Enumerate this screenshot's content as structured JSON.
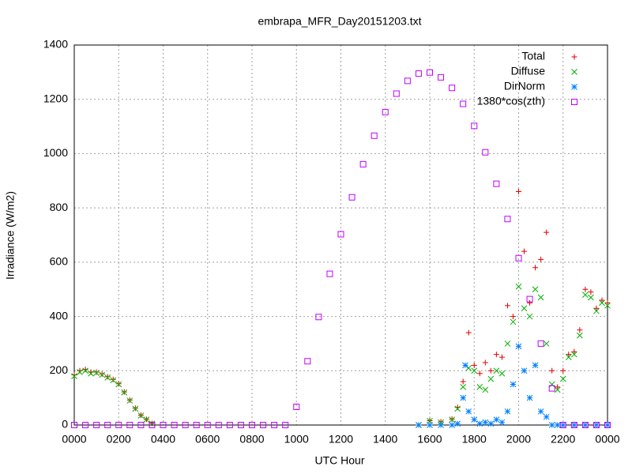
{
  "chart_data": {
    "type": "scatter",
    "title": "embrapa_MFR_Day20151203.txt",
    "x_label": "UTC Hour",
    "y_label": "Irradiance (W/m2)",
    "xlim": [
      0,
      24
    ],
    "ylim": [
      0,
      1400
    ],
    "xticks": [
      {
        "value": 0,
        "label": "0000"
      },
      {
        "value": 2,
        "label": "0200"
      },
      {
        "value": 4,
        "label": "0400"
      },
      {
        "value": 6,
        "label": "0600"
      },
      {
        "value": 8,
        "label": "0800"
      },
      {
        "value": 10,
        "label": "1000"
      },
      {
        "value": 12,
        "label": "1200"
      },
      {
        "value": 14,
        "label": "1400"
      },
      {
        "value": 16,
        "label": "1600"
      },
      {
        "value": 18,
        "label": "1800"
      },
      {
        "value": 20,
        "label": "2000"
      },
      {
        "value": 22,
        "label": "2200"
      },
      {
        "value": 24,
        "label": "0000"
      }
    ],
    "yticks": [
      0,
      200,
      400,
      600,
      800,
      1000,
      1200,
      1400
    ],
    "grid": true,
    "legend": "top-right",
    "series": [
      {
        "name": "Total",
        "color": "#e00000",
        "marker": "plus",
        "x": [
          0,
          0.25,
          0.5,
          0.75,
          1,
          1.25,
          1.5,
          1.75,
          2,
          2.25,
          2.5,
          2.75,
          3,
          3.25,
          3.5,
          15.5,
          16,
          16.5,
          17,
          17.25,
          17.5,
          17.75,
          18,
          18.25,
          18.5,
          18.75,
          19,
          19.25,
          19.5,
          19.75,
          20,
          20.25,
          20.5,
          20.75,
          21,
          21.25,
          21.5,
          21.75,
          22,
          22.25,
          22.5,
          22.75,
          23,
          23.25,
          23.5,
          23.75,
          24
        ],
        "values": [
          185,
          200,
          205,
          195,
          195,
          188,
          178,
          168,
          152,
          122,
          92,
          62,
          36,
          21,
          6,
          0,
          16,
          12,
          22,
          65,
          160,
          340,
          220,
          190,
          230,
          200,
          260,
          250,
          440,
          400,
          860,
          640,
          450,
          580,
          610,
          710,
          200,
          140,
          200,
          260,
          270,
          350,
          500,
          490,
          430,
          460,
          450
        ]
      },
      {
        "name": "Diffuse",
        "color": "#00b000",
        "marker": "cross",
        "x": [
          0,
          0.25,
          0.5,
          0.75,
          1,
          1.25,
          1.5,
          1.75,
          2,
          2.25,
          2.5,
          2.75,
          3,
          3.25,
          3.5,
          15.5,
          16,
          16.5,
          17,
          17.25,
          17.5,
          17.75,
          18,
          18.25,
          18.5,
          18.75,
          19,
          19.25,
          19.5,
          19.75,
          20,
          20.25,
          20.5,
          20.75,
          21,
          21.25,
          21.5,
          21.75,
          22,
          22.25,
          22.5,
          22.75,
          23,
          23.25,
          23.5,
          23.75,
          24
        ],
        "values": [
          180,
          195,
          200,
          190,
          192,
          185,
          175,
          165,
          150,
          120,
          90,
          60,
          35,
          20,
          5,
          0,
          15,
          10,
          20,
          60,
          140,
          210,
          200,
          140,
          130,
          170,
          200,
          190,
          300,
          380,
          510,
          430,
          400,
          500,
          470,
          300,
          150,
          130,
          170,
          250,
          260,
          330,
          480,
          470,
          420,
          450,
          440
        ]
      },
      {
        "name": "DirNorm",
        "color": "#0080ff",
        "marker": "star",
        "x": [
          15.5,
          16,
          16.5,
          17,
          17.25,
          17.5,
          17.6,
          17.75,
          18,
          18.25,
          18.5,
          18.75,
          19,
          19.25,
          19.5,
          19.75,
          20,
          20.25,
          20.5,
          20.75,
          21,
          21.25,
          21.5,
          21.75,
          22,
          22.5,
          23,
          23.5,
          24
        ],
        "values": [
          0,
          0,
          0,
          0,
          5,
          100,
          220,
          50,
          20,
          5,
          10,
          5,
          20,
          10,
          50,
          150,
          290,
          200,
          100,
          220,
          50,
          30,
          0,
          0,
          0,
          0,
          0,
          0,
          0
        ]
      },
      {
        "name": "1380*cos(zth)",
        "color": "#c000ff",
        "marker": "square",
        "x": [
          0,
          0.5,
          1,
          1.5,
          2,
          2.5,
          3,
          3.5,
          4,
          4.5,
          5,
          5.5,
          6,
          6.5,
          7,
          7.5,
          8,
          8.5,
          9,
          9.5,
          10,
          10.5,
          11,
          11.5,
          12,
          12.5,
          13,
          13.5,
          14,
          14.5,
          15,
          15.5,
          16,
          16.5,
          17,
          17.5,
          18,
          18.5,
          19,
          19.5,
          20,
          20.5,
          21,
          21.5,
          22,
          22.5,
          23,
          23.5,
          24
        ],
        "values": [
          0,
          0,
          0,
          0,
          0,
          0,
          0,
          0,
          0,
          0,
          0,
          0,
          0,
          0,
          0,
          0,
          0,
          0,
          0,
          0,
          67,
          235,
          398,
          557,
          703,
          839,
          961,
          1066,
          1153,
          1221,
          1268,
          1295,
          1299,
          1281,
          1242,
          1183,
          1102,
          1005,
          889,
          759,
          615,
          464,
          300,
          135,
          0,
          0,
          0,
          0,
          0
        ]
      }
    ]
  }
}
